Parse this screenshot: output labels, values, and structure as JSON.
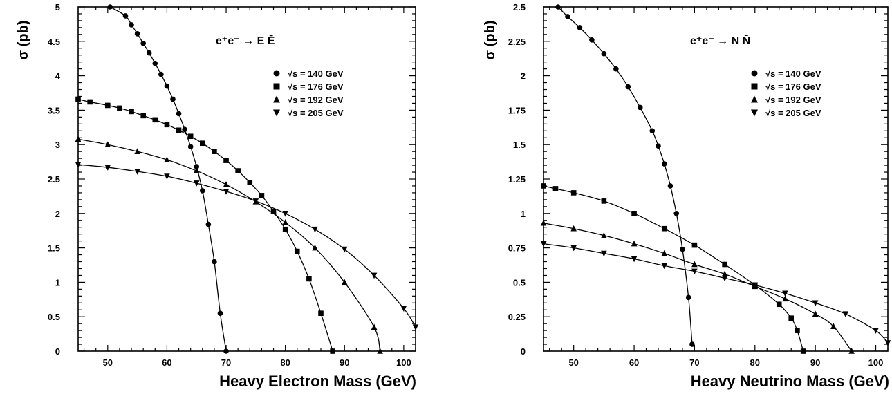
{
  "chart_data": [
    {
      "type": "line",
      "title": "e⁺e⁻ → E Ē",
      "xlabel": "Heavy Electron Mass (GeV)",
      "ylabel": "σ (pb)",
      "xlim": [
        45,
        102
      ],
      "ylim": [
        0,
        5
      ],
      "x_ticks": [
        "50",
        "60",
        "70",
        "80",
        "90",
        "100"
      ],
      "y_ticks": [
        "0",
        "0.5",
        "1",
        "1.5",
        "2",
        "2.5",
        "3",
        "3.5",
        "4",
        "4.5",
        "5"
      ],
      "legend_position": "right, below title",
      "series": [
        {
          "name": "√s = 140 GeV",
          "marker": "circle",
          "points": [
            [
              50.4,
              5.0
            ],
            [
              53,
              4.87
            ],
            [
              54,
              4.74
            ],
            [
              55,
              4.61
            ],
            [
              56,
              4.47
            ],
            [
              57,
              4.33
            ],
            [
              58,
              4.18
            ],
            [
              59,
              4.02
            ],
            [
              60,
              3.85
            ],
            [
              61,
              3.66
            ],
            [
              62,
              3.45
            ],
            [
              63,
              3.22
            ],
            [
              64,
              2.97
            ],
            [
              65,
              2.68
            ],
            [
              66,
              2.33
            ],
            [
              67,
              1.84
            ],
            [
              68,
              1.3
            ],
            [
              69,
              0.55
            ],
            [
              70,
              0.0
            ]
          ]
        },
        {
          "name": "√s = 176 GeV",
          "marker": "square",
          "points": [
            [
              45,
              3.66
            ],
            [
              47,
              3.62
            ],
            [
              50,
              3.57
            ],
            [
              52,
              3.53
            ],
            [
              54,
              3.48
            ],
            [
              56,
              3.42
            ],
            [
              58,
              3.36
            ],
            [
              60,
              3.29
            ],
            [
              62,
              3.21
            ],
            [
              64,
              3.12
            ],
            [
              66,
              3.02
            ],
            [
              68,
              2.9
            ],
            [
              70,
              2.77
            ],
            [
              72,
              2.62
            ],
            [
              74,
              2.45
            ],
            [
              76,
              2.26
            ],
            [
              78,
              2.03
            ],
            [
              80,
              1.77
            ],
            [
              82,
              1.45
            ],
            [
              84,
              1.05
            ],
            [
              86,
              0.55
            ],
            [
              88,
              0.0
            ]
          ]
        },
        {
          "name": "√s = 192 GeV",
          "marker": "triangle-up",
          "points": [
            [
              45,
              3.08
            ],
            [
              50,
              3.0
            ],
            [
              55,
              2.9
            ],
            [
              60,
              2.78
            ],
            [
              65,
              2.62
            ],
            [
              70,
              2.42
            ],
            [
              75,
              2.17
            ],
            [
              80,
              1.87
            ],
            [
              85,
              1.5
            ],
            [
              90,
              1.0
            ],
            [
              95,
              0.35
            ],
            [
              96,
              0.0
            ]
          ]
        },
        {
          "name": "√s = 205 GeV",
          "marker": "triangle-down",
          "points": [
            [
              45,
              2.71
            ],
            [
              50,
              2.67
            ],
            [
              55,
              2.61
            ],
            [
              60,
              2.54
            ],
            [
              65,
              2.44
            ],
            [
              70,
              2.32
            ],
            [
              75,
              2.18
            ],
            [
              80,
              2.0
            ],
            [
              85,
              1.77
            ],
            [
              90,
              1.48
            ],
            [
              95,
              1.1
            ],
            [
              100,
              0.62
            ],
            [
              102,
              0.35
            ]
          ]
        }
      ]
    },
    {
      "type": "line",
      "title": "e⁺e⁻ → N N̄",
      "xlabel": "Heavy Neutrino Mass (GeV)",
      "ylabel": "σ (pb)",
      "xlim": [
        45,
        102
      ],
      "ylim": [
        0,
        2.5
      ],
      "x_ticks": [
        "50",
        "60",
        "70",
        "80",
        "90",
        "100"
      ],
      "y_ticks": [
        "0",
        "0.25",
        "0.5",
        "0.75",
        "1",
        "1.25",
        "1.5",
        "1.75",
        "2",
        "2.25",
        "2.5"
      ],
      "legend_position": "right, below title",
      "series": [
        {
          "name": "√s = 140 GeV",
          "marker": "circle",
          "points": [
            [
              47.4,
              2.5
            ],
            [
              49,
              2.43
            ],
            [
              51,
              2.35
            ],
            [
              53,
              2.26
            ],
            [
              55,
              2.16
            ],
            [
              57,
              2.05
            ],
            [
              59,
              1.92
            ],
            [
              61,
              1.77
            ],
            [
              63,
              1.6
            ],
            [
              64,
              1.49
            ],
            [
              65,
              1.36
            ],
            [
              66,
              1.2
            ],
            [
              67,
              1.0
            ],
            [
              68,
              0.74
            ],
            [
              69,
              0.39
            ],
            [
              69.6,
              0.05
            ]
          ]
        },
        {
          "name": "√s = 176 GeV",
          "marker": "square",
          "points": [
            [
              45,
              1.2
            ],
            [
              47,
              1.18
            ],
            [
              50,
              1.15
            ],
            [
              55,
              1.09
            ],
            [
              60,
              1.0
            ],
            [
              65,
              0.89
            ],
            [
              70,
              0.77
            ],
            [
              75,
              0.63
            ],
            [
              80,
              0.48
            ],
            [
              84,
              0.34
            ],
            [
              86,
              0.24
            ],
            [
              87,
              0.15
            ],
            [
              88,
              0.0
            ]
          ]
        },
        {
          "name": "√s = 192 GeV",
          "marker": "triangle-up",
          "points": [
            [
              45,
              0.93
            ],
            [
              50,
              0.89
            ],
            [
              55,
              0.84
            ],
            [
              60,
              0.78
            ],
            [
              65,
              0.71
            ],
            [
              70,
              0.63
            ],
            [
              75,
              0.56
            ],
            [
              80,
              0.47
            ],
            [
              85,
              0.38
            ],
            [
              90,
              0.27
            ],
            [
              93,
              0.18
            ],
            [
              96,
              0.0
            ]
          ]
        },
        {
          "name": "√s = 205 GeV",
          "marker": "triangle-down",
          "points": [
            [
              45,
              0.78
            ],
            [
              50,
              0.75
            ],
            [
              55,
              0.71
            ],
            [
              60,
              0.67
            ],
            [
              65,
              0.62
            ],
            [
              70,
              0.58
            ],
            [
              75,
              0.53
            ],
            [
              80,
              0.48
            ],
            [
              85,
              0.42
            ],
            [
              90,
              0.35
            ],
            [
              95,
              0.27
            ],
            [
              100,
              0.15
            ],
            [
              102,
              0.06
            ]
          ]
        }
      ]
    }
  ]
}
